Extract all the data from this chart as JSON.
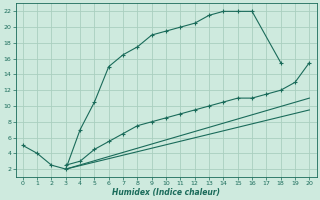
{
  "bg_color": "#ceeade",
  "grid_color": "#aacfbf",
  "line_color": "#1a6b5a",
  "xlabel": "Humidex (Indice chaleur)",
  "xlim": [
    -0.5,
    20.5
  ],
  "ylim": [
    1,
    23
  ],
  "xticks": [
    0,
    1,
    2,
    3,
    4,
    5,
    6,
    7,
    8,
    9,
    10,
    11,
    12,
    13,
    14,
    15,
    16,
    17,
    18,
    19,
    20
  ],
  "yticks": [
    2,
    4,
    6,
    8,
    10,
    12,
    14,
    16,
    18,
    20,
    22
  ],
  "series1_x": [
    0,
    1,
    2,
    3,
    4,
    5,
    6,
    7,
    8,
    9,
    10,
    11,
    12,
    13,
    14,
    15,
    16,
    18
  ],
  "series1_y": [
    5,
    4,
    2.5,
    2,
    7,
    10.5,
    15,
    16.5,
    17.5,
    19,
    19.5,
    20,
    20.5,
    21.5,
    22,
    22,
    22,
    15.5
  ],
  "series2_x": [
    3,
    4,
    5,
    6,
    7,
    8,
    9,
    10,
    11,
    12,
    13,
    14,
    15,
    16,
    17,
    18,
    19,
    20
  ],
  "series2_y": [
    2.5,
    3,
    4.5,
    5.5,
    6.5,
    7.5,
    8,
    8.5,
    9,
    9.5,
    10,
    10.5,
    11,
    11,
    11.5,
    12,
    13,
    15.5
  ],
  "series3_x": [
    3,
    20
  ],
  "series3_y": [
    2,
    11
  ],
  "series4_x": [
    3,
    20
  ],
  "series4_y": [
    2,
    9.5
  ]
}
